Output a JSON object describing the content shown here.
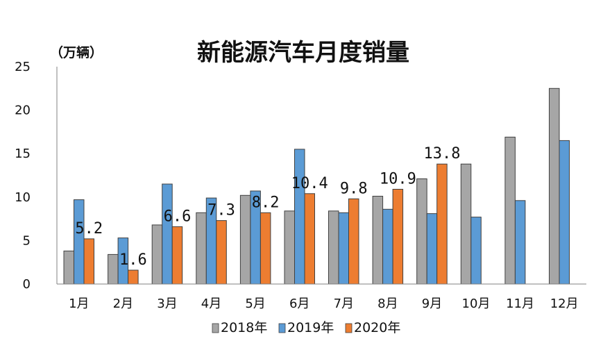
{
  "chart_data": {
    "type": "bar",
    "title": "新能源汽车月度销量",
    "unit_label": "（万辆）",
    "categories": [
      "1月",
      "2月",
      "3月",
      "4月",
      "5月",
      "6月",
      "7月",
      "8月",
      "9月",
      "10月",
      "11月",
      "12月"
    ],
    "series": [
      {
        "name": "2018年",
        "color": "#a6a6a6",
        "values": [
          3.8,
          3.4,
          6.8,
          8.2,
          10.2,
          8.4,
          8.4,
          10.1,
          12.1,
          13.8,
          16.9,
          22.5
        ]
      },
      {
        "name": "2019年",
        "color": "#5b9bd5",
        "values": [
          9.7,
          5.3,
          11.5,
          9.9,
          10.7,
          15.5,
          8.2,
          8.6,
          8.1,
          7.7,
          9.6,
          16.5
        ]
      },
      {
        "name": "2020年",
        "color": "#ed7d31",
        "values": [
          5.2,
          1.6,
          6.6,
          7.3,
          8.2,
          10.4,
          9.8,
          10.9,
          13.8,
          null,
          null,
          null
        ]
      }
    ],
    "data_labels": [
      "5.2",
      "1.6",
      "6.6",
      "7.3",
      "8.2",
      "10.4",
      "9.8",
      "10.9",
      "13.8"
    ],
    "yticks": [
      "0",
      "5",
      "10",
      "15",
      "20",
      "25"
    ],
    "ylim": [
      0,
      25
    ],
    "grid": false,
    "legend_position": "bottom"
  }
}
